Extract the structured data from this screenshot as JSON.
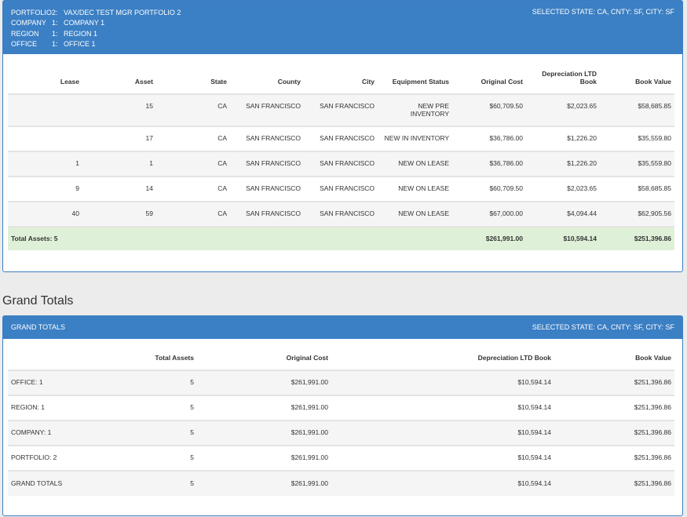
{
  "report_header": {
    "lines": [
      {
        "key": "PORTFOLIO",
        "num": "2:",
        "value": "VAX/DEC TEST MGR PORTFOLIO 2"
      },
      {
        "key": "COMPANY",
        "num": "1:",
        "value": "COMPANY 1"
      },
      {
        "key": "REGION",
        "num": "1:",
        "value": "REGION 1"
      },
      {
        "key": "OFFICE",
        "num": "1:",
        "value": "OFFICE 1"
      }
    ],
    "selected": "SELECTED STATE: CA, CNTY: SF, CITY: SF"
  },
  "asset_table": {
    "columns": [
      "Lease",
      "Asset",
      "State",
      "County",
      "City",
      "Equipment Status",
      "Original Cost",
      "Depreciation LTD Book",
      "Book Value"
    ],
    "rows": [
      {
        "lease": "",
        "asset": "15",
        "state": "CA",
        "county": "SAN FRANCISCO",
        "city": "SAN FRANCISCO",
        "status": "NEW PRE INVENTORY",
        "orig": "$60,709.50",
        "dep": "$2,023.65",
        "book": "$58,685.85"
      },
      {
        "lease": "",
        "asset": "17",
        "state": "CA",
        "county": "SAN FRANCISCO",
        "city": "SAN FRANCISCO",
        "status": "NEW IN INVENTORY",
        "orig": "$36,786.00",
        "dep": "$1,226.20",
        "book": "$35,559.80"
      },
      {
        "lease": "1",
        "asset": "1",
        "state": "CA",
        "county": "SAN FRANCISCO",
        "city": "SAN FRANCISCO",
        "status": "NEW ON LEASE",
        "orig": "$36,786.00",
        "dep": "$1,226.20",
        "book": "$35,559.80"
      },
      {
        "lease": "9",
        "asset": "14",
        "state": "CA",
        "county": "SAN FRANCISCO",
        "city": "SAN FRANCISCO",
        "status": "NEW ON LEASE",
        "orig": "$60,709.50",
        "dep": "$2,023.65",
        "book": "$58,685.85"
      },
      {
        "lease": "40",
        "asset": "59",
        "state": "CA",
        "county": "SAN FRANCISCO",
        "city": "SAN FRANCISCO",
        "status": "NEW ON LEASE",
        "orig": "$67,000.00",
        "dep": "$4,094.44",
        "book": "$62,905.56"
      }
    ],
    "total": {
      "label": "Total Assets: 5",
      "orig": "$261,991.00",
      "dep": "$10,594.14",
      "book": "$251,396.86"
    }
  },
  "grand_heading": "Grand Totals",
  "grand_header": {
    "title": "GRAND TOTALS",
    "selected": "SELECTED STATE: CA, CNTY: SF, CITY: SF"
  },
  "grand_table": {
    "columns": [
      "",
      "Total Assets",
      "Original Cost",
      "Depreciation LTD Book",
      "Book Value"
    ],
    "rows": [
      {
        "label": "OFFICE: 1",
        "assets": "5",
        "orig": "$261,991.00",
        "dep": "$10,594.14",
        "book": "$251,396.86"
      },
      {
        "label": "REGION: 1",
        "assets": "5",
        "orig": "$261,991.00",
        "dep": "$10,594.14",
        "book": "$251,396.86"
      },
      {
        "label": "COMPANY: 1",
        "assets": "5",
        "orig": "$261,991.00",
        "dep": "$10,594.14",
        "book": "$251,396.86"
      },
      {
        "label": "PORTFOLIO: 2",
        "assets": "5",
        "orig": "$261,991.00",
        "dep": "$10,594.14",
        "book": "$251,396.86"
      },
      {
        "label": "GRAND TOTALS",
        "assets": "5",
        "orig": "$261,991.00",
        "dep": "$10,594.14",
        "book": "$251,396.86"
      }
    ]
  },
  "colors": {
    "header_blue": "#3b7fc4",
    "total_green": "#dff0d8",
    "row_alt": "#f5f5f5"
  }
}
